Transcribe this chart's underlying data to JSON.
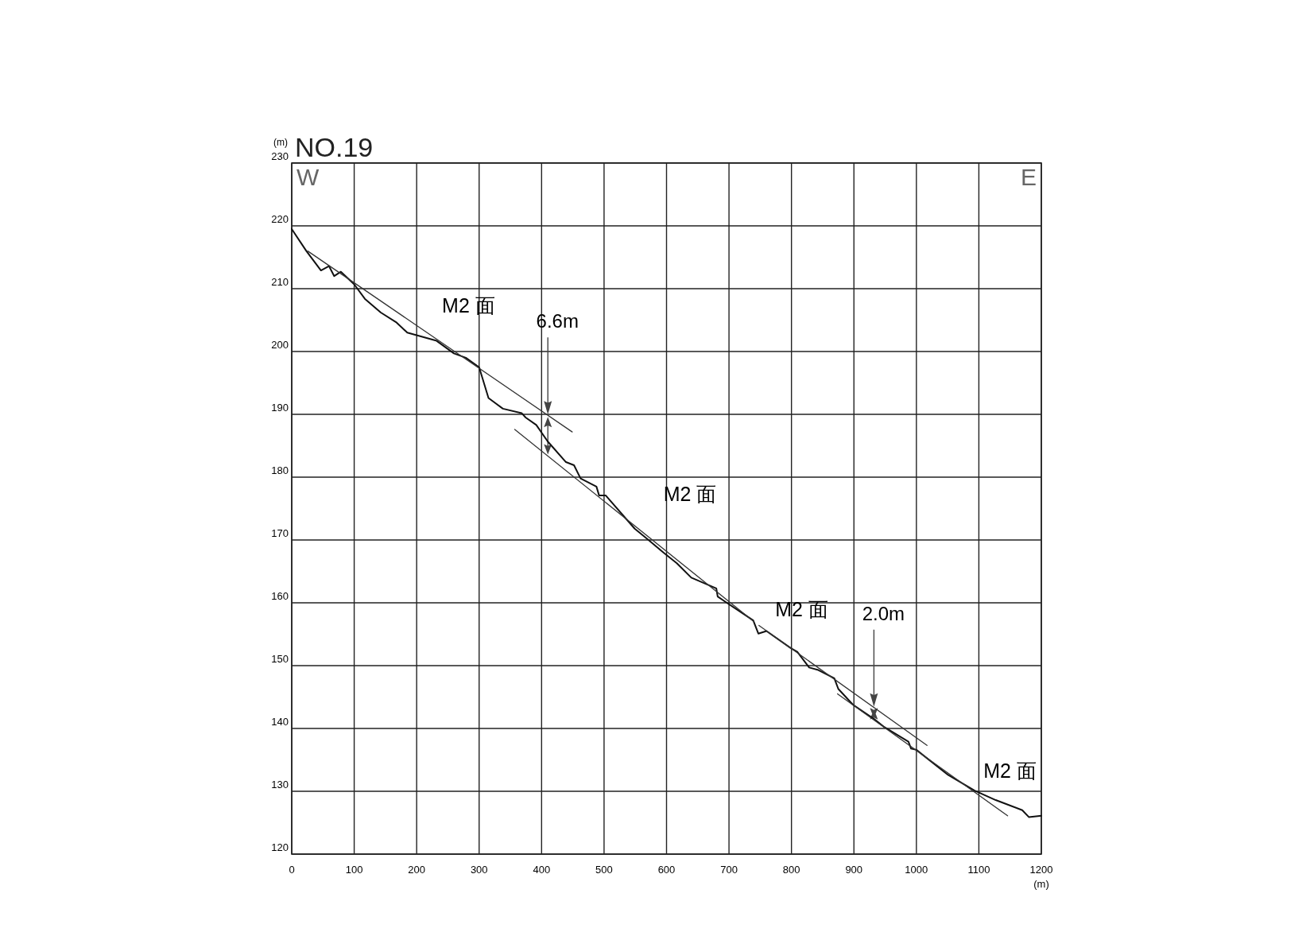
{
  "chart_data": {
    "type": "line",
    "title": "NO.19",
    "ylabel": "(m)",
    "xlabel": "(m)",
    "xlim": [
      0,
      1200
    ],
    "ylim": [
      120,
      230
    ],
    "xticks": [
      0,
      100,
      200,
      300,
      400,
      500,
      600,
      700,
      800,
      900,
      1000,
      1100,
      1200
    ],
    "yticks": [
      120,
      130,
      140,
      150,
      160,
      170,
      180,
      190,
      200,
      210,
      220,
      230
    ],
    "grid": true,
    "legend": false,
    "series": [
      {
        "color": "#111111",
        "x": [
          0,
          23.4,
          46.8,
          59.6,
          68,
          78.7,
          100,
          117,
          142.6,
          168,
          185,
          232,
          259.6,
          278.7,
          300,
          315,
          338,
          368,
          374.5,
          391.5,
          409.7,
          439,
          451.9,
          462.4,
          487.8,
          492,
          502.5,
          549,
          570,
          595,
          616.5,
          639.7,
          679.7,
          681.9,
          696.6,
          738.8,
          747,
          760,
          798.7,
          809.3,
          828.4,
          843,
          868.6,
          875,
          898.3,
          932.2,
          949,
          987.3,
          991.5,
          1000,
          1050.8,
          1093.2,
          1127,
          1169.5,
          1180,
          1200
        ],
        "values": [
          219.5,
          216,
          212.9,
          213.6,
          212,
          212.7,
          210.7,
          208.4,
          206.2,
          204.6,
          203,
          201.7,
          199.7,
          199,
          197.5,
          192.6,
          190.9,
          190.2,
          189.5,
          188.3,
          185.7,
          182.4,
          181.9,
          179.8,
          178.5,
          177.1,
          177.1,
          171.8,
          170.1,
          168,
          166.3,
          164,
          162.3,
          161,
          160,
          157.2,
          155.1,
          155.5,
          152.8,
          152.2,
          149.7,
          149.3,
          148,
          146.3,
          143.8,
          141.5,
          140.2,
          137.9,
          136.8,
          136.6,
          132.6,
          130.1,
          128.6,
          127,
          125.9,
          126.1
        ]
      },
      {
        "name": "M2 面",
        "color": "#333333",
        "x": [
          25.5,
          449
        ],
        "values": [
          216,
          187.2
        ]
      },
      {
        "name": "M2 面",
        "color": "#333333",
        "x": [
          357,
          740
        ],
        "values": [
          187.6,
          157
        ]
      },
      {
        "name": "M2 面",
        "color": "#333333",
        "x": [
          748,
          1017
        ],
        "values": [
          156.4,
          137.3
        ]
      },
      {
        "name": "M2 面",
        "color": "#333333",
        "x": [
          873.7,
          1146
        ],
        "values": [
          145.5,
          126.1
        ]
      }
    ],
    "annotations": [
      "W",
      "E",
      "6.6m",
      "2.0m"
    ]
  }
}
